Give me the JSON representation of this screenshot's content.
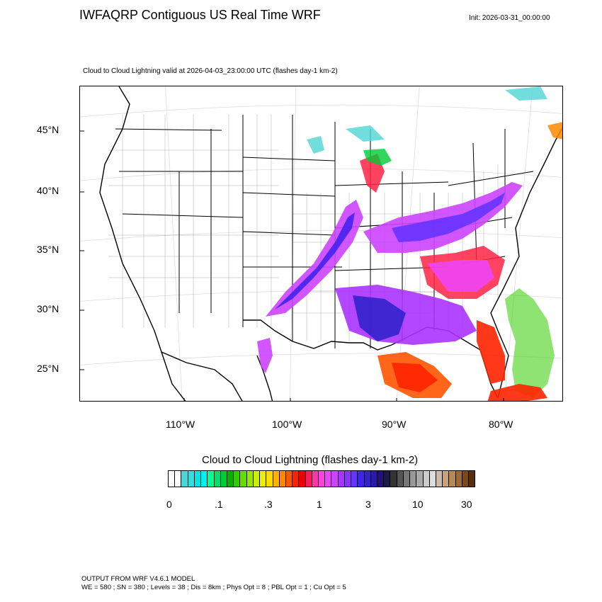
{
  "header": {
    "title": "IWFAQRP Contiguous US Real Time WRF",
    "init": "Init: 2026-03-31_00:00:00",
    "subtitle": "Cloud to Cloud Lightning valid at 2026-04-03_23:00:00 UTC   (flashes day-1 km-2)"
  },
  "map": {
    "latitude_labels": [
      "45°N",
      "40°N",
      "35°N",
      "30°N",
      "25°N"
    ],
    "longitude_labels": [
      "110°W",
      "100°W",
      "90°W",
      "80°W"
    ]
  },
  "colorbar": {
    "title": "Cloud to Cloud Lightning  (flashes day-1 km-2)",
    "tick_labels": [
      "0",
      ".1",
      ".3",
      "1",
      "3",
      "10",
      "30"
    ],
    "colors": [
      "#ffffff",
      "#ffffff",
      "#4dd4d4",
      "#33dddd",
      "#00e5e5",
      "#00f0f0",
      "#00ff99",
      "#00e066",
      "#00cc33",
      "#00b300",
      "#33cc00",
      "#66dd00",
      "#99e600",
      "#ccee00",
      "#eeee00",
      "#ffdd00",
      "#ffb300",
      "#ff8800",
      "#ff5500",
      "#ff2200",
      "#ee0000",
      "#ff1a66",
      "#ff33aa",
      "#ff44dd",
      "#ee44ff",
      "#cc44ff",
      "#aa33ff",
      "#8833ff",
      "#6633ff",
      "#4422ee",
      "#3322cc",
      "#2a1aaa",
      "#221177",
      "#1a1a44",
      "#333333",
      "#555555",
      "#777777",
      "#999999",
      "#aaaaaa",
      "#cccccc",
      "#dddddd",
      "#ccbbaa",
      "#c9a27a",
      "#b48858",
      "#9a6a3a",
      "#7a4a1e",
      "#5a2e0a"
    ]
  },
  "footer": {
    "line1": "OUTPUT FROM WRF V4.6.1 MODEL",
    "line2": "WE = 580 ; SN = 380 ; Levels = 38 ; Dis = 8km ; Phys Opt = 8 ; PBL Opt = 1 ; Cu Opt = 5"
  }
}
